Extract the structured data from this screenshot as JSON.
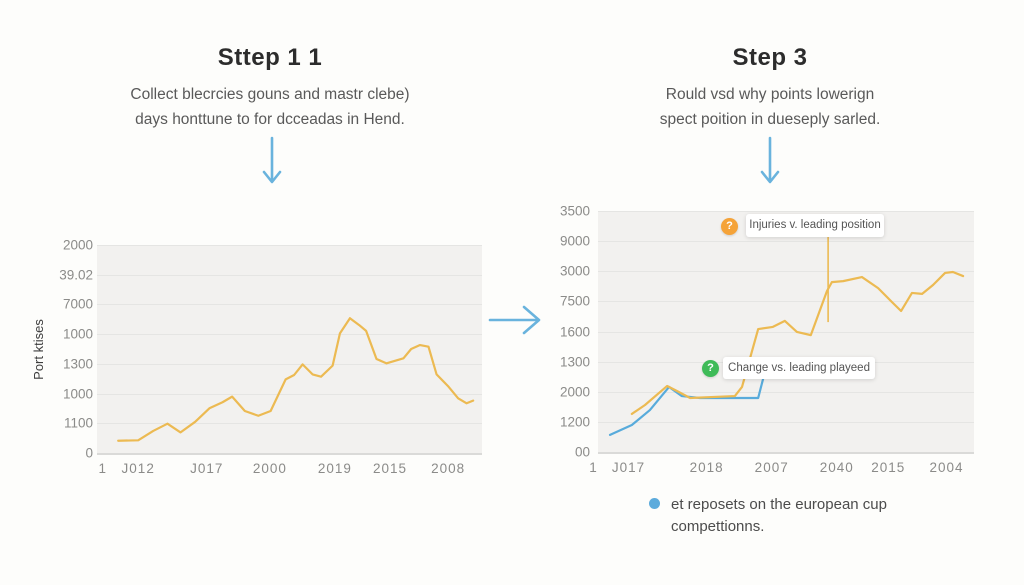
{
  "steps": [
    {
      "title": "Sttep 1 1",
      "subtitle_l1": "Collect blecrcies gouns and mastr clebe)",
      "subtitle_l2": "days honttune to for dcceadas in Hend."
    },
    {
      "title": "Step 3",
      "subtitle_l1": "Rould vsd why points lowerign",
      "subtitle_l2": "spect poition in dueseply sarled."
    }
  ],
  "colors": {
    "orange_line": "#ecba52",
    "blue_line": "#58abdb",
    "arrow_blue": "#69b3dd",
    "tooltip_orange": "#f5a338",
    "tooltip_green": "#3fbb58",
    "plot_bg": "#f2f1ef",
    "gridline": "#e5e5e3",
    "axis_text": "#8b8b89"
  },
  "chart_data": [
    {
      "type": "line",
      "ylabel": "Port ktises",
      "y_ticks": [
        "2000",
        "39.02",
        "7000",
        "1000",
        "1300",
        "1000",
        "1100",
        "0"
      ],
      "x_ticks": [
        {
          "label": "1",
          "x_pct": 1.5
        },
        {
          "label": "J012",
          "x_pct": 10.7
        },
        {
          "label": "J017",
          "x_pct": 28.5
        },
        {
          "label": "2000",
          "x_pct": 44.9
        },
        {
          "label": "2019",
          "x_pct": 61.8
        },
        {
          "label": "2015",
          "x_pct": 76.1
        },
        {
          "label": "2008",
          "x_pct": 91.2
        }
      ],
      "grid_divisions": 7,
      "series": [
        {
          "name": "port-ktises",
          "color": "#ecba52",
          "points_pct": [
            [
              5.5,
              5.9
            ],
            [
              10.7,
              6.1
            ],
            [
              14.6,
              10.6
            ],
            [
              18.3,
              14.1
            ],
            [
              21.7,
              9.9
            ],
            [
              25.5,
              15.0
            ],
            [
              29.2,
              21.5
            ],
            [
              32.6,
              24.4
            ],
            [
              35.1,
              27.1
            ],
            [
              38.4,
              20.2
            ],
            [
              41.9,
              17.9
            ],
            [
              45.1,
              20.2
            ],
            [
              49.0,
              35.4
            ],
            [
              51.2,
              37.5
            ],
            [
              53.4,
              42.6
            ],
            [
              56.0,
              37.8
            ],
            [
              58.2,
              36.7
            ],
            [
              61.2,
              42.0
            ],
            [
              63.1,
              57.5
            ],
            [
              65.7,
              64.8
            ],
            [
              68.1,
              61.5
            ],
            [
              69.9,
              58.7
            ],
            [
              72.6,
              45.2
            ],
            [
              75.2,
              43.1
            ],
            [
              79.6,
              45.5
            ],
            [
              81.6,
              50.0
            ],
            [
              83.9,
              51.9
            ],
            [
              86.1,
              51.1
            ],
            [
              88.2,
              37.8
            ],
            [
              91.3,
              31.9
            ],
            [
              93.8,
              26.3
            ],
            [
              96.0,
              23.9
            ],
            [
              97.7,
              25.2
            ]
          ]
        }
      ]
    },
    {
      "type": "line",
      "ylabel": "",
      "y_ticks": [
        "3500",
        "9000",
        "3000",
        "7500",
        "1600",
        "1300",
        "2000",
        "1200",
        "00"
      ],
      "x_ticks": [
        {
          "label": "1",
          "x_pct": -1.2
        },
        {
          "label": "J017",
          "x_pct": 8.1
        },
        {
          "label": "2018",
          "x_pct": 28.9
        },
        {
          "label": "2007",
          "x_pct": 46.2
        },
        {
          "label": "2040",
          "x_pct": 63.5
        },
        {
          "label": "2015",
          "x_pct": 77.2
        },
        {
          "label": "2004",
          "x_pct": 92.7
        }
      ],
      "grid_divisions": 8,
      "series": [
        {
          "name": "reposets-european-cup",
          "color": "#58abdb",
          "points_pct": [
            [
              3.2,
              7.1
            ],
            [
              9.0,
              11.2
            ],
            [
              13.8,
              17.4
            ],
            [
              18.9,
              27.0
            ],
            [
              22.3,
              23.2
            ],
            [
              27.1,
              22.4
            ],
            [
              42.6,
              22.4
            ],
            [
              43.9,
              30.3
            ]
          ]
        },
        {
          "name": "injuries-leading-position",
          "color": "#ecba52",
          "points_pct": [
            [
              9.0,
              15.8
            ],
            [
              12.5,
              19.5
            ],
            [
              18.4,
              27.4
            ],
            [
              21.0,
              25.3
            ],
            [
              24.5,
              22.4
            ],
            [
              36.4,
              23.2
            ],
            [
              38.3,
              27.0
            ],
            [
              42.6,
              51.0
            ],
            [
              46.5,
              51.9
            ],
            [
              49.7,
              54.4
            ],
            [
              52.9,
              49.8
            ],
            [
              56.6,
              48.5
            ],
            [
              60.9,
              66.8
            ],
            [
              62.2,
              70.5
            ],
            [
              65.2,
              70.9
            ],
            [
              70.2,
              72.6
            ],
            [
              74.5,
              68.0
            ],
            [
              78.2,
              62.2
            ],
            [
              80.6,
              58.5
            ],
            [
              83.5,
              66.0
            ],
            [
              86.2,
              65.6
            ],
            [
              89.1,
              69.3
            ],
            [
              92.3,
              74.3
            ],
            [
              94.4,
              74.7
            ],
            [
              97.1,
              73.0
            ]
          ]
        }
      ],
      "pointer": {
        "x_pct": 61.2,
        "y_top_pct": 10.8,
        "y_bottom_pct": 46.1,
        "color": "#ecba52"
      },
      "annotations": [
        {
          "label": "Injuries v. leading position",
          "icon_glyph": "?",
          "icon_color": "#f5a338"
        },
        {
          "label": "Change vs. leading playeed",
          "icon_glyph": "?",
          "icon_color": "#3fbb58"
        }
      ]
    }
  ],
  "legend": {
    "dot_color": "#5cabdc",
    "line1": "et reposets on the european cup",
    "line2": "compettionns."
  }
}
